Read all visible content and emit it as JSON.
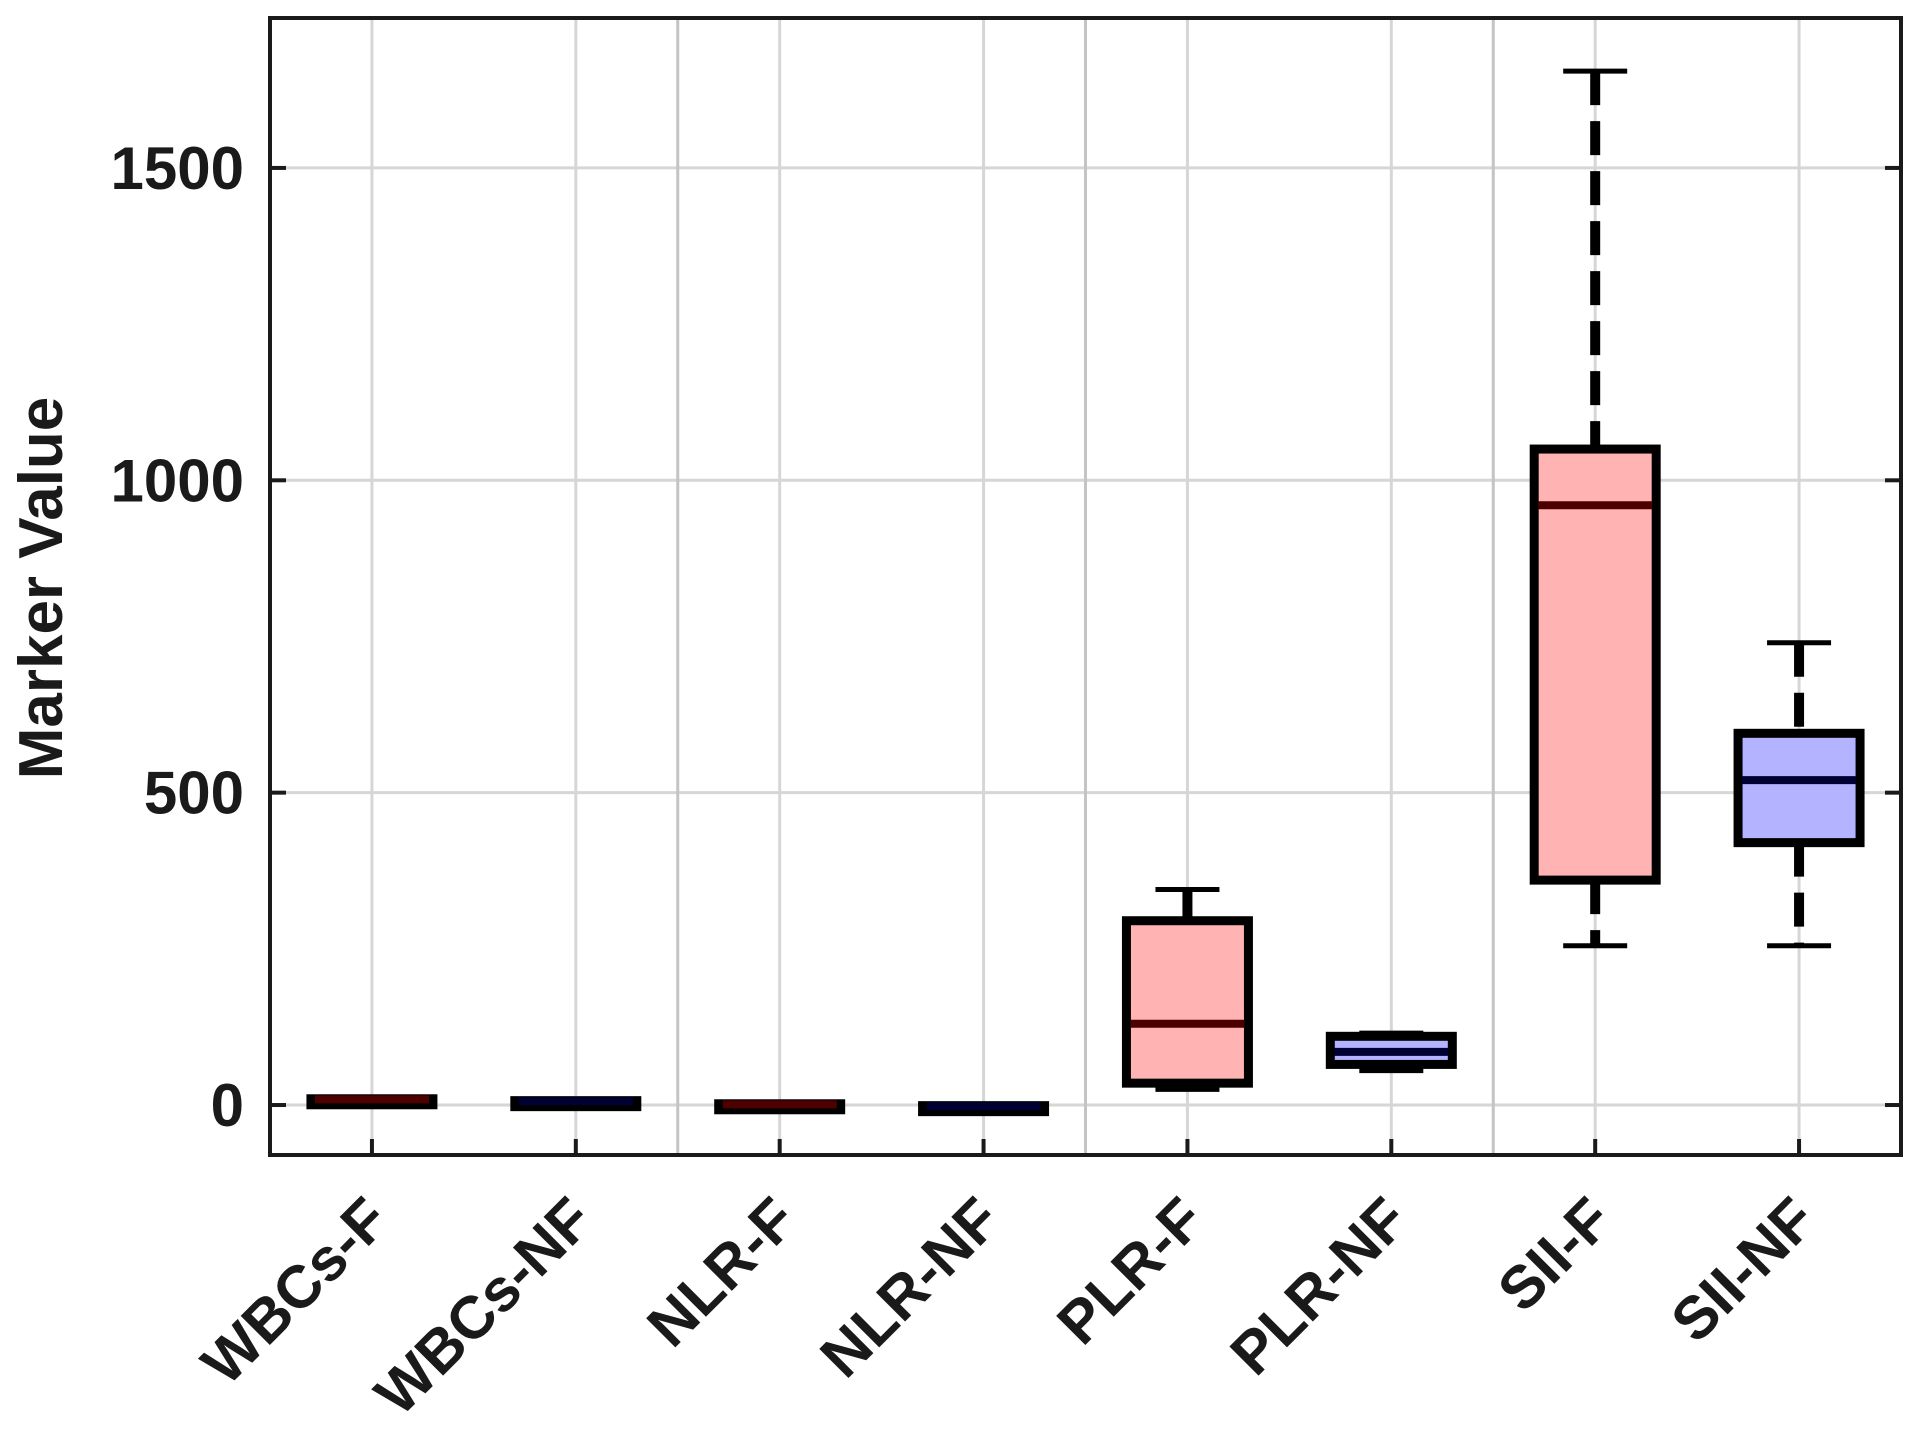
{
  "chart_data": {
    "type": "box",
    "title": "",
    "xlabel": "",
    "ylabel": "Marker Value",
    "ylim": [
      -80,
      1740
    ],
    "yticks": [
      0,
      500,
      1000,
      1500
    ],
    "grid": true,
    "categories": [
      "WBCs-F",
      "WBCs-NF",
      "NLR-F",
      "NLR-NF",
      "PLR-F",
      "PLR-NF",
      "SII-F",
      "SII-NF"
    ],
    "colors": {
      "F": "#ffb3b3",
      "NF": "#b3b3ff",
      "median_F": "#4d0000",
      "median_NF": "#000033"
    },
    "boxes": [
      {
        "label": "WBCs-F",
        "group": "F",
        "min": 8,
        "q1": 8,
        "median": 9,
        "q3": 10,
        "max": 11
      },
      {
        "label": "WBCs-NF",
        "group": "NF",
        "min": 5,
        "q1": 5,
        "median": 6,
        "q3": 7,
        "max": 8
      },
      {
        "label": "NLR-F",
        "group": "F",
        "min": 0,
        "q1": 0,
        "median": 1,
        "q3": 2,
        "max": 3
      },
      {
        "label": "NLR-NF",
        "group": "NF",
        "min": -3,
        "q1": -3,
        "median": -2,
        "q3": -1,
        "max": 0
      },
      {
        "label": "PLR-F",
        "group": "F",
        "min": 25,
        "q1": 35,
        "median": 130,
        "q3": 295,
        "max": 345
      },
      {
        "label": "PLR-NF",
        "group": "NF",
        "min": 55,
        "q1": 65,
        "median": 85,
        "q3": 110,
        "max": 115
      },
      {
        "label": "SII-F",
        "group": "F",
        "min": 255,
        "q1": 360,
        "median": 960,
        "q3": 1050,
        "max": 1655
      },
      {
        "label": "SII-NF",
        "group": "NF",
        "min": 255,
        "q1": 420,
        "median": 520,
        "q3": 595,
        "max": 740
      }
    ]
  }
}
